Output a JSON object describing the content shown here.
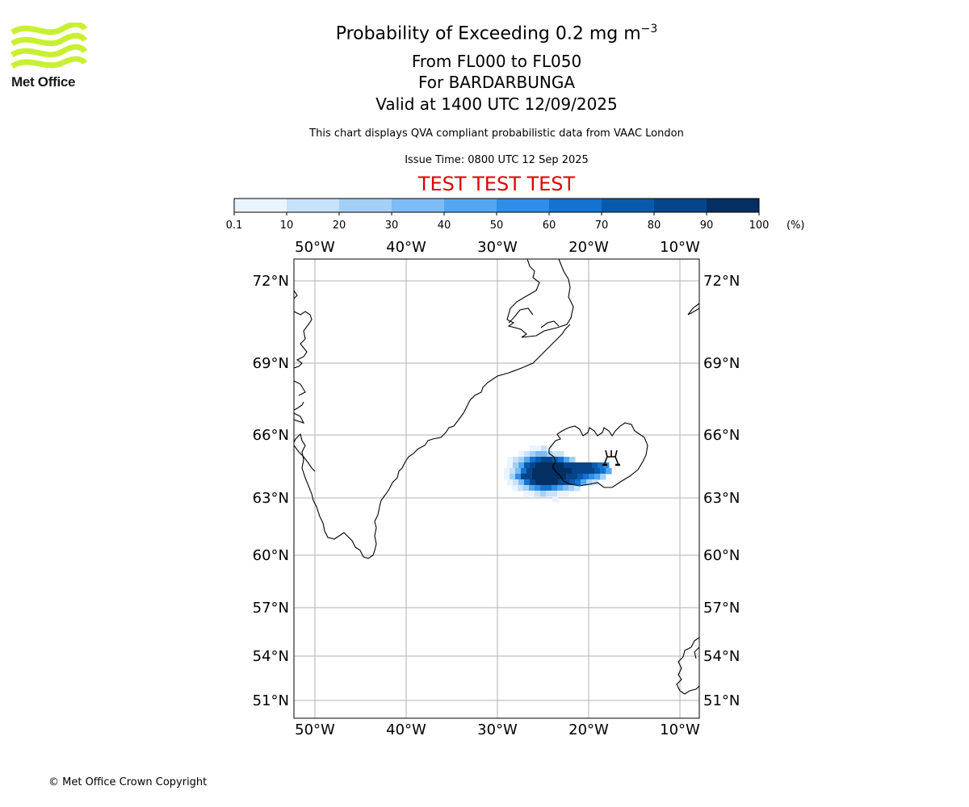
{
  "header": {
    "title_prefix": "Probability of Exceeding 0.2 mg m",
    "title_exponent": "−3",
    "flight_levels": "From FL000 to FL050",
    "volcano": "For BARDARBUNGA",
    "valid_time": "Valid at 1400 UTC 12/09/2025",
    "disclaimer": "This chart displays QVA compliant probabilistic data from VAAC London",
    "issue_time": "Issue Time: 0800 UTC 12 Sep 2025",
    "test_banner": "TEST TEST TEST"
  },
  "logo": {
    "text": "Met Office",
    "color": "#c8f032"
  },
  "colorbar": {
    "unit": "(%)",
    "ticks": [
      "0.1",
      "10",
      "20",
      "30",
      "40",
      "50",
      "60",
      "70",
      "80",
      "90",
      "100"
    ],
    "colors": [
      "#eaf4ff",
      "#c8e2fb",
      "#a4d0f7",
      "#7dbcf4",
      "#54a6f0",
      "#2e8ee8",
      "#1472d0",
      "#0a5aac",
      "#06458a",
      "#032f63"
    ]
  },
  "map": {
    "top_lon_labels": [
      "50°W",
      "40°W",
      "30°W",
      "20°W",
      "10°W"
    ],
    "bottom_lon_labels": [
      "50°W",
      "40°W",
      "30°W",
      "20°W",
      "10°W"
    ],
    "left_lat_labels": [
      "72°N",
      "69°N",
      "66°N",
      "63°N",
      "60°N",
      "57°N",
      "54°N",
      "51°N"
    ],
    "right_lat_labels": [
      "72°N",
      "69°N",
      "66°N",
      "63°N",
      "60°N",
      "57°N",
      "54°N",
      "51°N"
    ],
    "coastline_color": "#000000",
    "grid_color": "#b0b0b0"
  },
  "footer": {
    "copyright": "© Met Office Crown Copyright"
  }
}
